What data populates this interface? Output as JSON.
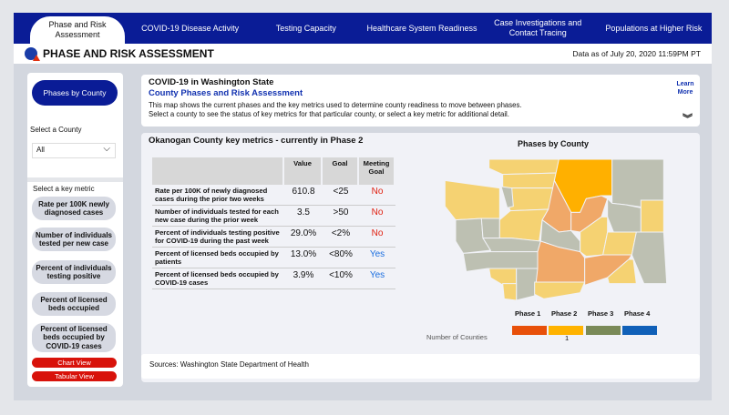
{
  "nav": {
    "tabs": [
      "Phase and Risk Assessment",
      "COVID-19 Disease Activity",
      "Testing Capacity",
      "Healthcare System Readiness",
      "Case Investigations and Contact Tracing",
      "Populations at Higher Risk"
    ]
  },
  "header": {
    "title": "PHASE AND RISK ASSESSMENT",
    "as_of": "Data as of July 20, 2020 11:59PM PT"
  },
  "sidebar": {
    "phases_button": "Phases by County",
    "county_label": "Select a County",
    "county_value": "All",
    "metric_label": "Select a key metric",
    "metrics": [
      "Rate per 100K newly diagnosed cases",
      "Number of individuals tested per new case",
      "Percent of individuals testing positive",
      "Percent of licensed beds occupied",
      "Percent of licensed beds occupied by COVID-19 cases"
    ],
    "chart_view": "Chart View",
    "tabular_view": "Tabular View"
  },
  "info": {
    "title": "COVID-19 in Washington State",
    "subtitle": "County Phases and Risk Assessment",
    "line1": "This map shows the current phases and the key metrics used to determine county readiness to move between phases.",
    "line2": "Select a county to see the status of key metrics for that particular county, or select a key metric for additional detail.",
    "learn_more": "Learn More",
    "expand": "︾"
  },
  "metrics_table": {
    "title": "Okanogan County key metrics - currently in Phase 2",
    "headers": [
      "",
      "Value",
      "Goal",
      "Meeting Goal"
    ],
    "rows": [
      {
        "metric": "Rate per 100K of newly diagnosed cases during the prior two weeks",
        "value": "610.8",
        "goal": "<25",
        "meeting": "No"
      },
      {
        "metric": "Number of individuals tested for each new case during the prior week",
        "value": "3.5",
        "goal": ">50",
        "meeting": "No"
      },
      {
        "metric": "Percent of individuals testing positive for COVID-19 during the past week",
        "value": "29.0%",
        "goal": "<2%",
        "meeting": "No"
      },
      {
        "metric": "Percent of licensed beds occupied by patients",
        "value": "13.0%",
        "goal": "<80%",
        "meeting": "Yes"
      },
      {
        "metric": "Percent of licensed beds occupied by COVID-19 cases",
        "value": "3.9%",
        "goal": "<10%",
        "meeting": "Yes"
      }
    ]
  },
  "map": {
    "title": "Phases by County",
    "legend": [
      {
        "label": "Phase 1",
        "color": "#e8500a"
      },
      {
        "label": "Phase 2",
        "color": "#ffb300"
      },
      {
        "label": "Phase 3",
        "color": "#7a8a58"
      },
      {
        "label": "Phase 4",
        "color": "#1060b8"
      }
    ],
    "count_label": "Number of Counties",
    "phase2_count": "1"
  },
  "sources": "Sources: Washington State Department of Health"
}
